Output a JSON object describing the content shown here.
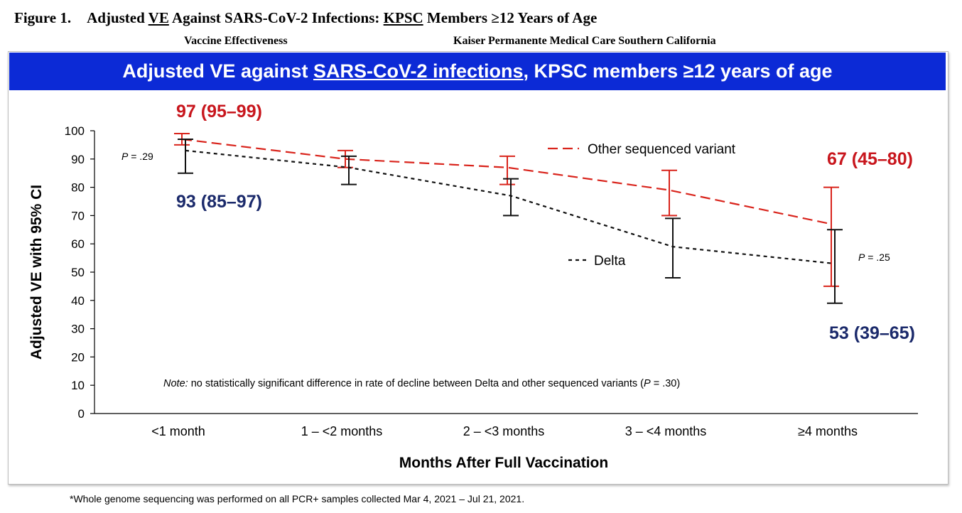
{
  "figure": {
    "label": "Figure 1.",
    "title_part1": "Adjusted ",
    "title_ve": "VE",
    "title_part2": " Against SARS-CoV-2 Infections:  ",
    "title_kpsc": "KPSC",
    "title_part3": " Members ≥12 Years of Age",
    "sub_left": "Vaccine Effectiveness",
    "sub_right": "Kaiser Permanente Medical Care Southern California"
  },
  "banner": {
    "part1": "Adjusted VE against ",
    "part_u": "SARS-CoV-2 infections",
    "part2": ", KPSC members ≥12 years of age"
  },
  "footnote": "*Whole genome sequencing was performed on all PCR+ samples collected Mar 4, 2021 – Jul 21, 2021.",
  "chart_data": {
    "type": "line",
    "xlabel": "Months After Full Vaccination",
    "ylabel": "Adjusted VE with 95% CI",
    "ylim": [
      0,
      100
    ],
    "yticks": [
      0,
      10,
      20,
      30,
      40,
      50,
      60,
      70,
      80,
      90,
      100
    ],
    "categories": [
      "<1 month",
      "1 – <2 months",
      "2 – <3 months",
      "3 – <4 months",
      "≥4 months"
    ],
    "grid": false,
    "series": [
      {
        "name": "Other sequenced variant",
        "color": "#d9241c",
        "dash": "long",
        "values": [
          97,
          90,
          87,
          79,
          67
        ],
        "ci_low": [
          95,
          87,
          81,
          70,
          45
        ],
        "ci_high": [
          99,
          93,
          91,
          86,
          80
        ]
      },
      {
        "name": "Delta",
        "color": "#111111",
        "dash": "short",
        "values": [
          93,
          87,
          77,
          59,
          53
        ],
        "ci_low": [
          85,
          81,
          70,
          48,
          39
        ],
        "ci_high": [
          97,
          91,
          83,
          69,
          65
        ]
      }
    ],
    "annotations": {
      "red_first": "97 (95–99)",
      "red_last": "67 (45–80)",
      "blue_first": "93 (85–97)",
      "blue_last": "53 (39–65)",
      "p_first_italic": "P",
      "p_first_rest": " = .29",
      "p_last_italic": "P",
      "p_last_rest": " = .25",
      "note_italic": "Note:",
      "note_text": " no statistically significant difference in rate of decline between Delta and other sequenced variants (",
      "note_p": "P",
      "note_end": " = .30)"
    },
    "colors": {
      "red_label": "#c8161d",
      "blue_label": "#1b2a6b"
    }
  }
}
